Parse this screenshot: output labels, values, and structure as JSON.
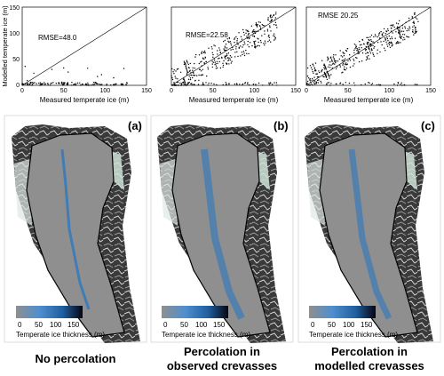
{
  "colors": {
    "ice_grey": "#8f8f8f",
    "melt_blue": "#2b78c0",
    "rock_dark": "#2b2b2b",
    "frame": "#000000"
  },
  "chart_data": [
    {
      "type": "scatter",
      "panel": 1,
      "xlabel": "Measured temperate ice (m)",
      "ylabel": "Modelled temperate ice (m)",
      "xlim": [
        0,
        150
      ],
      "ylim": [
        0,
        150
      ],
      "xticks": [
        "0",
        "50",
        "100",
        "150"
      ],
      "yticks": [
        "0",
        "50",
        "100",
        "150"
      ],
      "annotation": "RMSE=48.0",
      "grid": false,
      "reference_line": "1:1 diagonal"
    },
    {
      "type": "scatter",
      "panel": 2,
      "xlabel": "Measured temperate ice (m)",
      "xlim": [
        0,
        150
      ],
      "ylim": [
        0,
        150
      ],
      "xticks": [
        "0",
        "50",
        "100",
        "150"
      ],
      "annotation": "RMSE=22.58",
      "grid": false,
      "reference_line": "1:1 diagonal"
    },
    {
      "type": "scatter",
      "panel": 3,
      "xlabel": "Measured temperate ice (m)",
      "xlim": [
        0,
        150
      ],
      "ylim": [
        0,
        150
      ],
      "xticks": [
        "0",
        "50",
        "100",
        "150"
      ],
      "annotation": "RMSE 20.25",
      "grid": false,
      "reference_line": "1:1 diagonal"
    }
  ],
  "maps": [
    {
      "letter": "(a)",
      "caption_line1": "No percolation",
      "caption_line2": "",
      "colorbar_ticks": [
        "0",
        "50",
        "100",
        "150"
      ],
      "colorbar_label": "Temperate ice thickness (m)"
    },
    {
      "letter": "(b)",
      "caption_line1": "Percolation in",
      "caption_line2": "observed crevasses",
      "colorbar_ticks": [
        "0",
        "50",
        "100",
        "150"
      ],
      "colorbar_label": "Temperate ice thickness (m)"
    },
    {
      "letter": "(c)",
      "caption_line1": "Percolation in",
      "caption_line2": "modelled crevasses",
      "colorbar_ticks": [
        "0",
        "50",
        "100",
        "150"
      ],
      "colorbar_label": "Temperate ice thickness (m)"
    }
  ]
}
